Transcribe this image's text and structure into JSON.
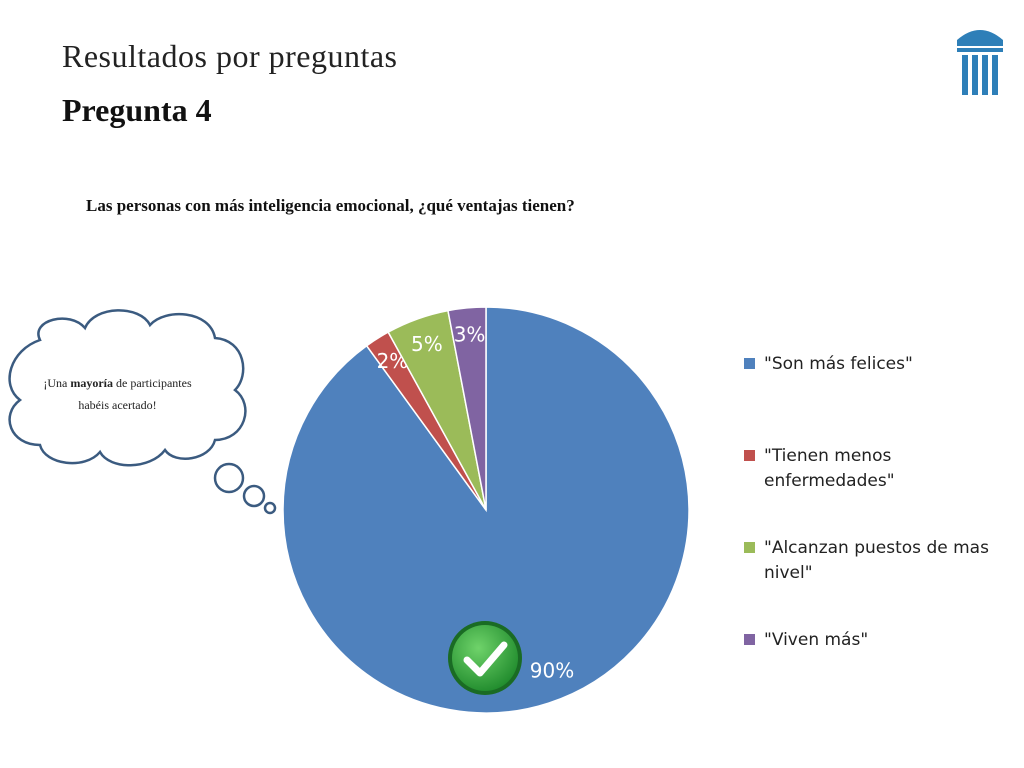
{
  "slide": {
    "title": "Resultados por preguntas",
    "subtitle": "Pregunta 4"
  },
  "logo": {
    "icon": "university-columns-logo",
    "color": "#2e7fb8"
  },
  "thought_bubble": {
    "prefix": "¡Una ",
    "emphasis": "mayoría",
    "suffix": " de participantes habéis acertado!",
    "icon": "thought-cloud-icon"
  },
  "correct_marker": {
    "icon": "checkmark-icon",
    "color": "#3aa346"
  },
  "chart_data": {
    "type": "pie",
    "title": "Las personas con más inteligencia emocional, ¿qué ventajas tienen?",
    "legend_position": "right",
    "slices": [
      {
        "label": "\"Son más felices\"",
        "value": 90,
        "display": "90%",
        "color": "#4f81bd"
      },
      {
        "label": "\"Tienen menos enfermedades\"",
        "value": 2,
        "display": "2%",
        "color": "#c0504d"
      },
      {
        "label": "\"Alcanzan puestos de mas nivel\"",
        "value": 5,
        "display": "5%",
        "color": "#9bbb59"
      },
      {
        "label": "\"Viven más\"",
        "value": 3,
        "display": "3%",
        "color": "#8064a2"
      }
    ]
  }
}
